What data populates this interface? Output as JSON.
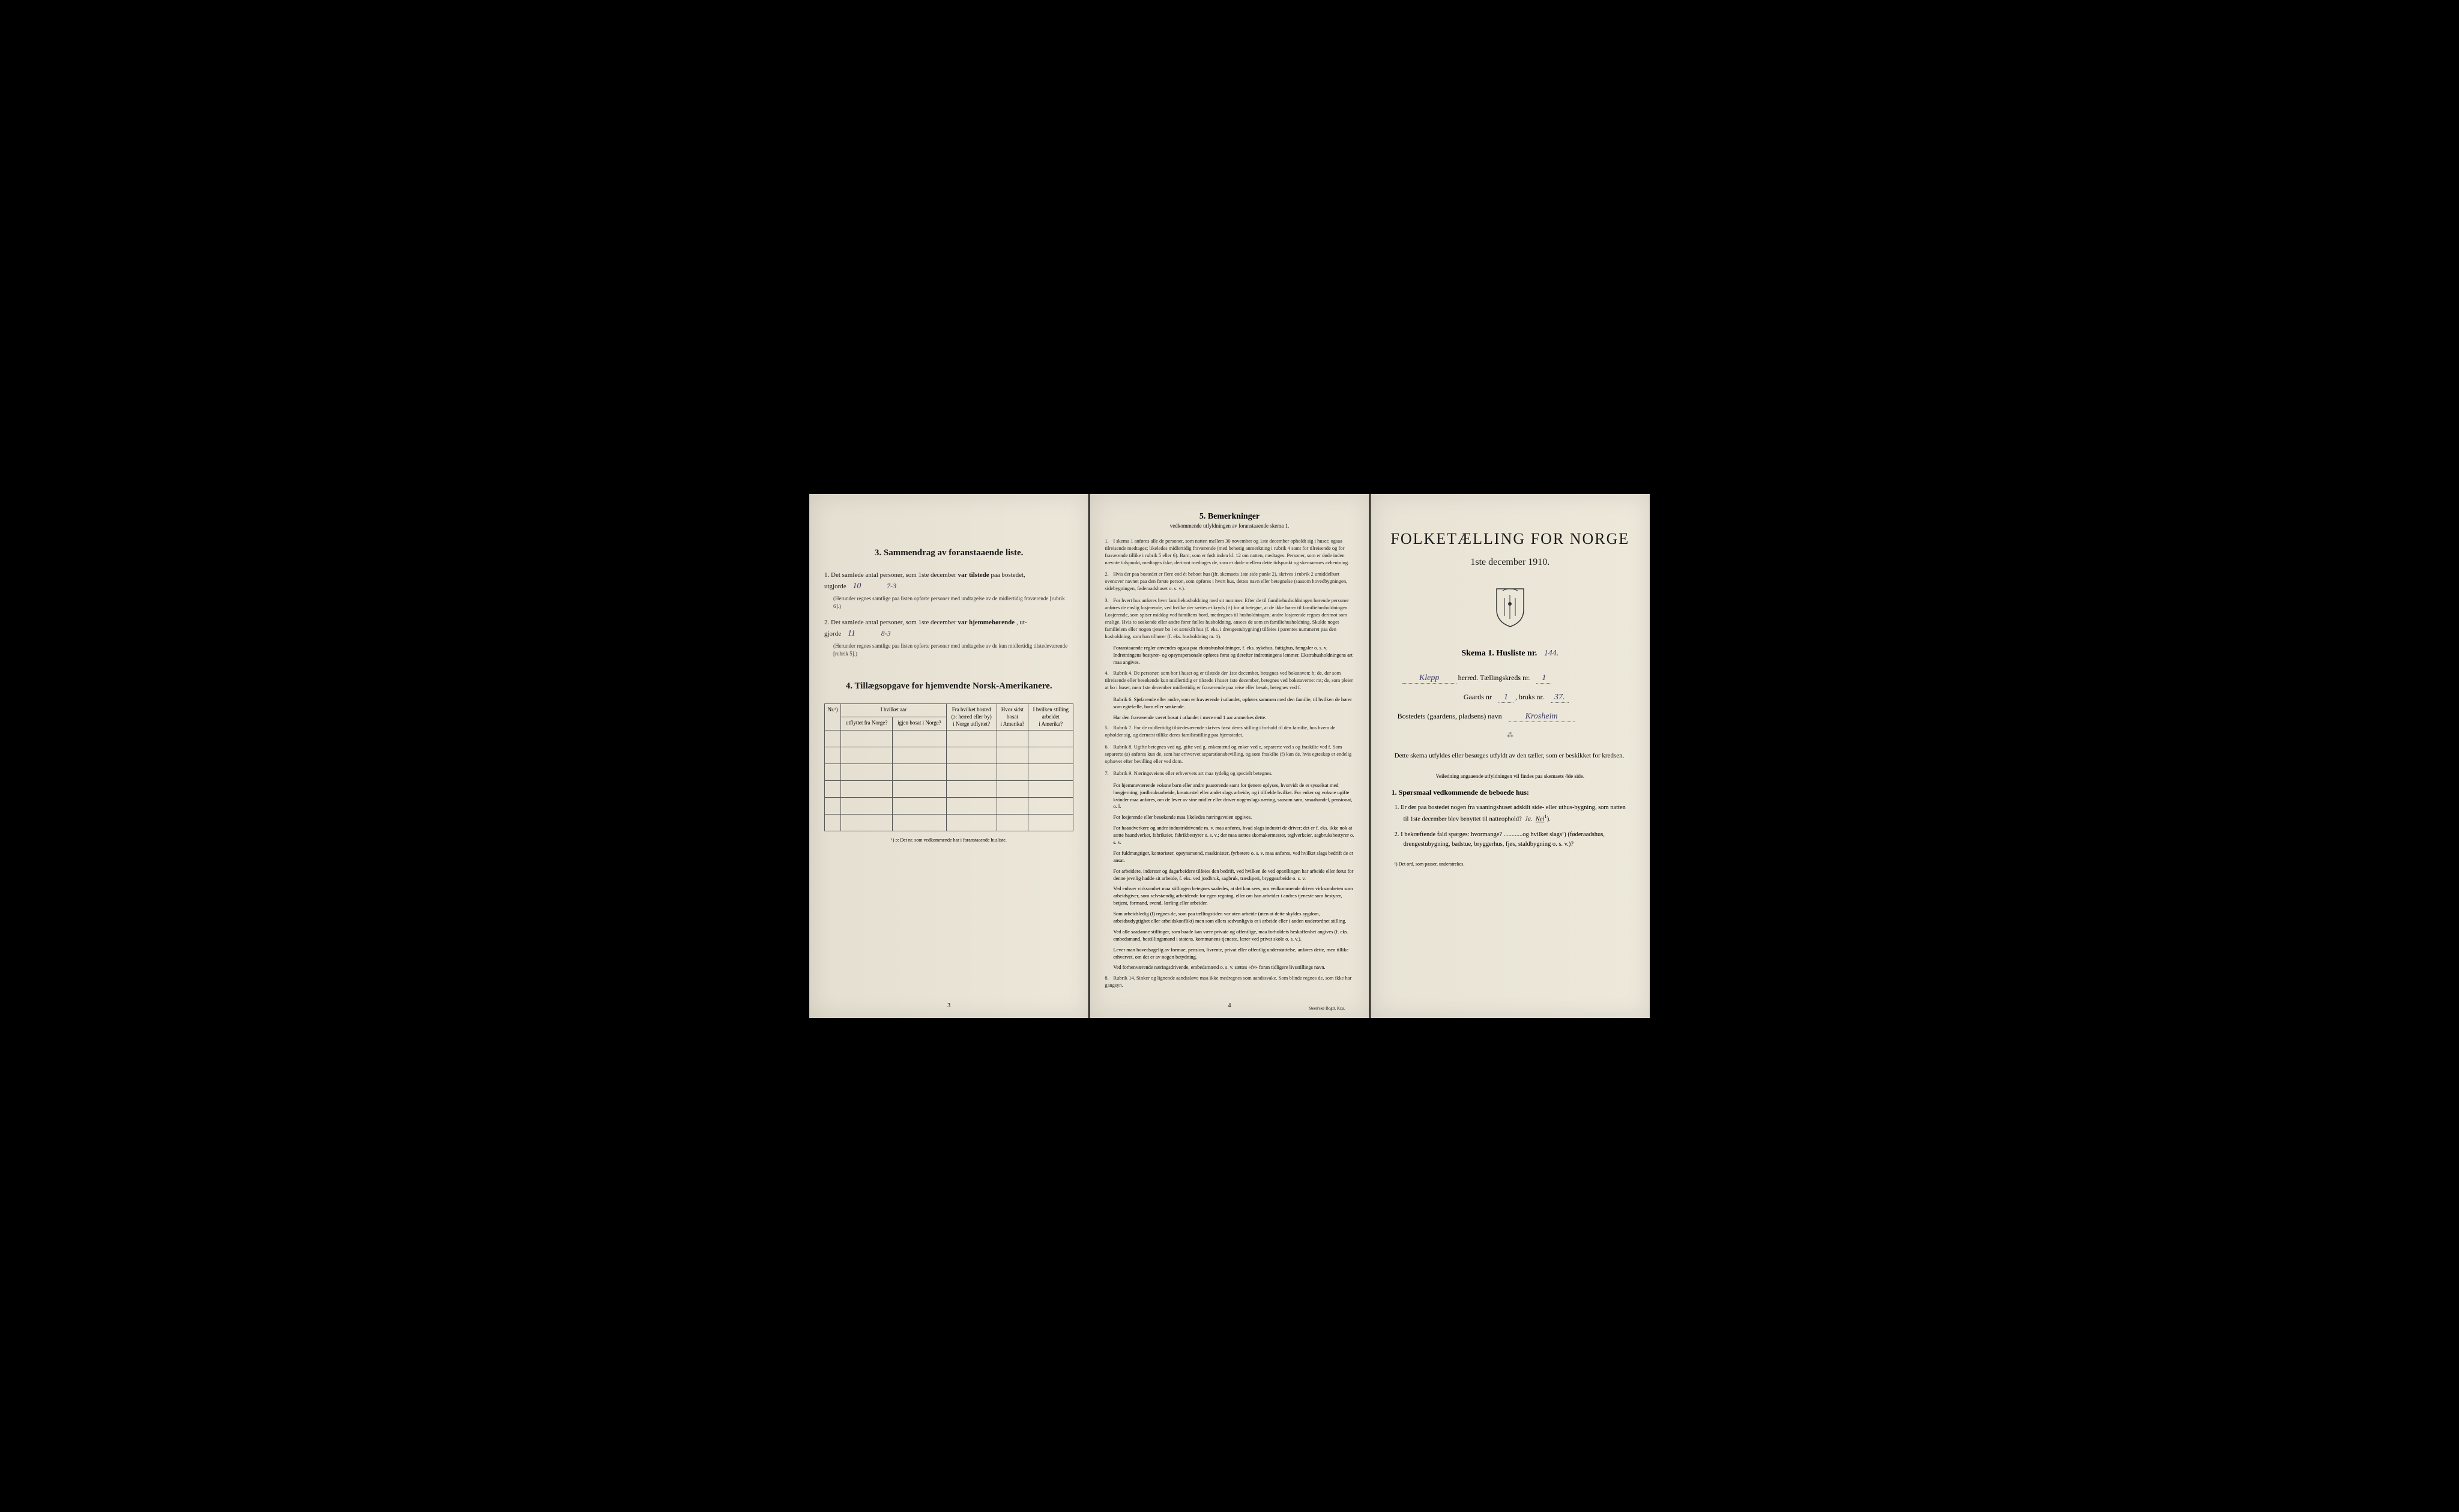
{
  "colors": {
    "paper": "#e8e3d5",
    "ink": "#1a1a1a",
    "handwriting": "#3a3a6a",
    "background": "#000000",
    "border": "#555555"
  },
  "page1": {
    "section3_title": "3.   Sammendrag av foranstaaende liste.",
    "item1_prefix": "1.  Det samlede antal personer, som 1ste december",
    "item1_bold": "var tilstede",
    "item1_suffix": "paa bostedet,",
    "item1_line2": "utgjorde",
    "item1_handwritten_a": "10",
    "item1_handwritten_b": "7-3",
    "item1_note": "(Herunder regnes samtlige paa listen opførte personer med undtagelse av de midlertidig fraværende [rubrik 6].)",
    "item2_prefix": "2.  Det samlede antal personer, som 1ste december",
    "item2_bold": "var hjemmehørende",
    "item2_suffix": ", ut-",
    "item2_line2": "gjorde",
    "item2_handwritten_a": "11",
    "item2_handwritten_b": "8-3",
    "item2_note": "(Herunder regnes samtlige paa listen opførte personer med undtagelse av de kun midlertidig tilstedeværende [rubrik 5].)",
    "section4_title": "4.   Tillægsopgave for hjemvendte Norsk-Amerikanere.",
    "table": {
      "col1": "Nr.¹)",
      "col2_line1": "I hvilket aar",
      "col2_sub1": "utflyttet fra Norge?",
      "col2_sub2": "igjen bosat i Norge?",
      "col3_line1": "Fra hvilket bosted",
      "col3_line2": "(ɔ: herred eller by)",
      "col3_line3": "i Norge utflyttet?",
      "col4_line1": "Hvor sidst",
      "col4_line2": "bosat",
      "col4_line3": "i Amerika?",
      "col5_line1": "I hvilken stilling",
      "col5_line2": "arbeidet",
      "col5_line3": "i Amerika?",
      "empty_rows": 6
    },
    "table_footnote": "¹) ɔ: Det nr. som vedkommende har i foranstaaende husliste.",
    "page_num": "3"
  },
  "page2": {
    "title": "5.   Bemerkninger",
    "subtitle": "vedkommende utfyldningen av foranstaaende skema 1.",
    "remarks": [
      {
        "num": "1.",
        "text": "I skema 1 anføres alle de personer, som natten mellem 30 november og 1ste december opholdt sig i huset; ogsaa tilreisende medtages; likeledes midlertidig fraværende (med behørig anmerkning i rubrik 4 samt for tilreisende og for fraværende tillike i rubrik 5 eller 6). Barn, som er født inden kl. 12 om natten, medtages. Personer, som er døde inden nævnte tidspunkt, medtages ikke; derimot medtages de, som er døde mellem dette tidspunkt og skemaernes avhentning."
      },
      {
        "num": "2.",
        "text": "Hvis der paa bostedet er flere end ét beboet hus (jfr. skemaets 1ste side punkt 2), skrives i rubrik 2 umiddelbart ovenover navnet paa den første person, som opføres i hvert hus, dettes navn eller betegnelse (saasom hovedbygningen, sidebygningen, føderaadshuset o. s. v.)."
      },
      {
        "num": "3.",
        "text": "For hvert hus anføres hver familiehusholdning med sit nummer. Efter de til familiehusholdningen hørende personer anføres de enslig losjerende, ved hvilke der sættes et kryds (×) for at betegne, at de ikke hører til familiehusholdningen. Losjerende, som spiser middag ved familiens bord, medregnes til husholdningen; andre losjerende regnes derimot som enslige. Hvis to søskende eller andre fører fælles husholdning, ansees de som en familiehusholdning. Skulde noget familielem eller nogen tjener bo i et særskilt hus (f. eks. i drengestubygning) tilføies i parentes nummeret paa den husholdning, som han tilhører (f. eks. husholdning nr. 1)."
      },
      {
        "num": "",
        "text": "Foranstaaende regler anvendes ogsaa paa ekstrahusholdninger, f. eks. sykehus, fattighus, fængsler o. s. v. Indretningens bestyrer- og opsynspersonale opføres først og derefter indretningens lemmer. Ekstrahusholdningens art maa angives."
      },
      {
        "num": "4.",
        "text": "Rubrik 4. De personer, som bor i huset og er tilstede der 1ste december, betegnes ved bokstaven: b; de, der som tilreisende eller besøkende kun midlertidig er tilstede i huset 1ste december, betegnes ved bokstaverne: mt; de, som pleier at bo i huset, men 1ste december midlertidig er fraværende paa reise eller besøk, betegnes ved f."
      },
      {
        "num": "",
        "text": "Rubrik 6. Sjøfarende eller andre, som er fraværende i utlandet, opføres sammen med den familie, til hvilken de hører som egtefælle, barn eller søskende."
      },
      {
        "num": "",
        "text": "Har den fraværende været bosat i utlandet i mere end 1 aar anmerkes dette."
      },
      {
        "num": "5.",
        "text": "Rubrik 7. For de midlertidig tilstedeværende skrives først deres stilling i forhold til den familie, hos hvem de opholder sig, og dernæst tillike deres familiestilling paa hjemstedet."
      },
      {
        "num": "6.",
        "text": "Rubrik 8. Ugifte betegnes ved ug, gifte ved g, enkemænd og enker ved e, separerte ved s og fraskilte ved f. Som separerte (s) anføres kun de, som har erhvervet separationsbevilling, og som fraskilte (f) kun de, hvis egteskap er endelig ophævet efter bevilling eller ved dom."
      },
      {
        "num": "7.",
        "text": "Rubrik 9. Næringsveiens eller erhvervets art maa tydelig og specielt betegnes."
      },
      {
        "num": "",
        "text": "For hjemmeværende voksne barn eller andre paarørende samt for tjenere oplyses, hvorvidt de er sysselsat med husgjerning, jordbruksarbeide, kreaturstel eller andet slags arbeide, og i tilfælde hvilket. For enker og voksne ugifte kvinder maa anføres, om de lever av sine midler eller driver nogenslags næring, saasom søm, smaahandel, pensionat, o. l."
      },
      {
        "num": "",
        "text": "For losjerende eller besøkende maa likeledes næringsveien opgives."
      },
      {
        "num": "",
        "text": "For haandverkere og andre industridrivende m. v. maa anføres, hvad slags industri de driver; det er f. eks. ikke nok at sætte haandverker, fabrikeier, fabrikbestyrer o. s. v.; der maa sættes skomakermester, teglverkeier, sagbruksbestyrer o. s. v."
      },
      {
        "num": "",
        "text": "For fuldmægtiger, kontorister, opsynsmænd, maskinister, fyrbøtere o. s. v. maa anføres, ved hvilket slags bedrift de er ansat."
      },
      {
        "num": "",
        "text": "For arbeidere, inderster og dagarbeidere tilføies den bedrift, ved hvilken de ved optællingen har arbeide eller forut for denne jevnlig hadde sit arbeide, f. eks. ved jordbruk, sagbruk, træsliperi, bryggearbeide o. s. v."
      },
      {
        "num": "",
        "text": "Ved enhver virksomhet maa stillingen betegnes saaledes, at det kan sees, om vedkommende driver virksomheten som arbeidsgiver, som selvstændig arbeidende for egen regning, eller om han arbeider i andres tjeneste som bestyrer, betjent, formand, svend, lærling eller arbeider."
      },
      {
        "num": "",
        "text": "Som arbeidsledig (l) regnes de, som paa tællingstiden var uten arbeide (uten at dette skyldes sygdom, arbeidsudygtighet eller arbeidskonflikt) men som ellers sedvanligvis er i arbeide eller i anden underordnet stilling."
      },
      {
        "num": "",
        "text": "Ved alle saadanne stillinger, som baade kan være private og offentlige, maa forholdets beskaffenhet angives (f. eks. embedsmand, bestillingsmand i statens, kommunens tjeneste, lærer ved privat skole o. s. v.)."
      },
      {
        "num": "",
        "text": "Lever man hovedsagelig av formue, pension, livrente, privat eller offentlig understøttelse, anføres dette, men tillike erhvervet, om det er av nogen betydning."
      },
      {
        "num": "",
        "text": "Ved forhenværende næringsdrivende, embedsmænd o. s. v. sættes «fv» foran tidligere livsstillings navn."
      },
      {
        "num": "8.",
        "text": "Rubrik 14. Sinker og lignende aandssløve maa ikke medregnes som aandssvake. Som blinde regnes de, som ikke har gangsyn."
      }
    ],
    "page_num": "4",
    "printer": "Steen'ske Bogtr.  Kr.a."
  },
  "page3": {
    "main_title": "FOLKETÆLLING FOR NORGE",
    "date": "1ste december 1910.",
    "skema_label": "Skema 1.   Husliste nr.",
    "husliste_nr": "144.",
    "herred_handwritten": "Klepp",
    "herred_label": "herred.  Tællingskreds nr.",
    "kreds_nr": "1",
    "gaards_label": "Gaards nr",
    "gaards_nr": "1",
    "bruks_label": ", bruks nr.",
    "bruks_nr": "37.",
    "bosted_label": "Bostedets (gaardens, pladsens) navn",
    "bosted_name": "Krosheim",
    "instruction": "Dette skema utfyldes eller besørges utfyldt av den tæller, som er beskikket for kredsen.",
    "sub_instruction": "Veiledning angaaende utfyldningen vil findes paa skemaets 4de side.",
    "q_heading": "1. Spørsmaal vedkommende de beboede hus:",
    "q1": "1.  Er der paa bostedet nogen fra vaaningshuset adskilt side- eller uthus-bygning, som natten til 1ste december blev benyttet til natteophold?",
    "q1_ja": "Ja.",
    "q1_nei": "Nei",
    "q2": "2.  I bekræftende fald spørges: hvormange? ............og hvilket slags¹) (føderaadshus, drengestubygning, badstue, bryggerhus, fjøs, staldbygning o. s. v.)?",
    "footnote": "¹) Det ord, som passer, understrekes."
  }
}
